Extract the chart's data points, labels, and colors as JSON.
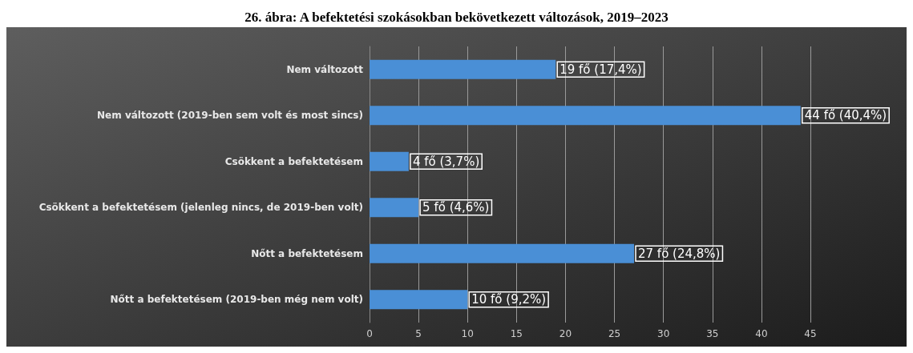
{
  "chart_data": {
    "type": "bar",
    "orientation": "horizontal",
    "title": "26. ábra: A befektetési szokásokban bekövetkezett változások, 2019–2023",
    "categories": [
      "Nem változott",
      "Nem változott (2019-ben sem volt és most sincs)",
      "Csökkent a befektetésem",
      "Csökkent a befektetésem (jelenleg nincs, de 2019-ben volt)",
      "Nőtt a befektetésem",
      "Nőtt a befektetésem (2019-ben még nem volt)"
    ],
    "values": [
      19,
      44,
      4,
      5,
      27,
      10
    ],
    "value_labels": [
      "19 fő (17,4%)",
      "44 fő (40,4%)",
      "4 fő (3,7%)",
      "5 fő (4,6%)",
      "27 fő (24,8%)",
      "10 fő (9,2%)"
    ],
    "color": "#4a8fd6",
    "xlim": [
      0,
      45
    ],
    "xticks": [
      0,
      5,
      10,
      15,
      20,
      25,
      30,
      35,
      40,
      45
    ],
    "grid": "x"
  }
}
